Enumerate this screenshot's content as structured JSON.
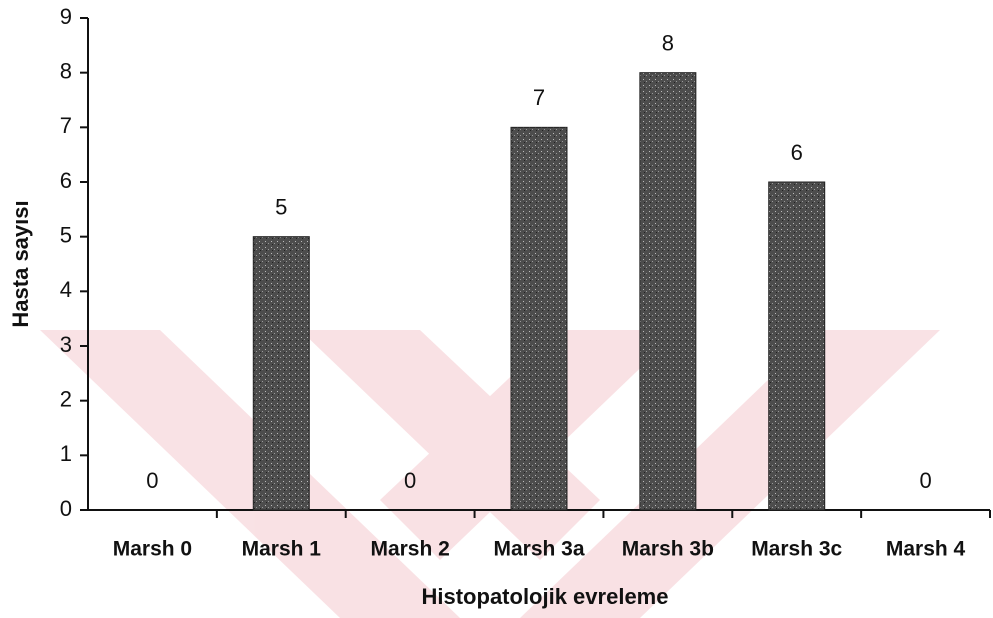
{
  "chart_data": {
    "type": "bar",
    "x_label": "Histopatolojik evreleme",
    "y_label": "Hasta sayısı",
    "categories": [
      "Marsh 0",
      "Marsh 1",
      "Marsh 2",
      "Marsh 3a",
      "Marsh 3b",
      "Marsh 3c",
      "Marsh 4"
    ],
    "values": [
      0,
      5,
      0,
      7,
      8,
      6,
      0
    ],
    "color": "#4d4d4d",
    "ylim": [
      0,
      9
    ],
    "yticks": [
      0,
      1,
      2,
      3,
      4,
      5,
      6,
      7,
      8,
      9
    ],
    "grid": false
  }
}
